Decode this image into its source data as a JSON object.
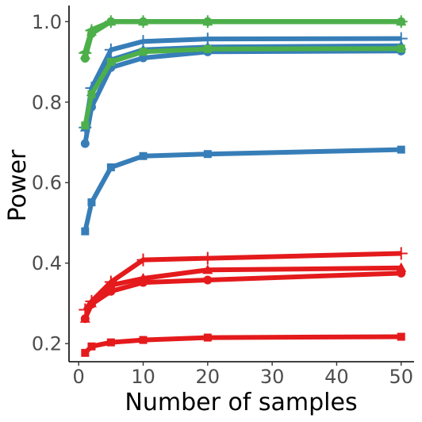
{
  "chart_data": {
    "type": "line",
    "title": "",
    "xlabel": "Number of samples",
    "ylabel": "Power",
    "xlim": [
      -1.5,
      52
    ],
    "ylim": [
      0.155,
      1.04
    ],
    "x_ticks": [
      0,
      10,
      20,
      30,
      40,
      50
    ],
    "x_tick_labels": [
      "0",
      "10",
      "20",
      "30",
      "40",
      "50"
    ],
    "y_ticks": [
      0.2,
      0.4,
      0.6,
      0.8,
      1.0
    ],
    "y_tick_labels": [
      "0.2",
      "0.4",
      "0.6",
      "0.8",
      "1.0"
    ],
    "grid": false,
    "legend": "none",
    "x": [
      1,
      2,
      5,
      10,
      20,
      50
    ],
    "series": [
      {
        "color": "#377eb8",
        "marker": "square",
        "values": [
          0.479,
          0.551,
          0.638,
          0.666,
          0.671,
          0.682
        ]
      },
      {
        "color": "#377eb8",
        "marker": "circle",
        "values": [
          0.697,
          0.788,
          0.886,
          0.91,
          0.925,
          0.927
        ]
      },
      {
        "color": "#377eb8",
        "marker": "triangle",
        "values": [
          0.737,
          0.825,
          0.905,
          0.93,
          0.937,
          0.94
        ]
      },
      {
        "color": "#377eb8",
        "marker": "plus",
        "values": [
          0.737,
          0.835,
          0.93,
          0.951,
          0.957,
          0.958
        ]
      },
      {
        "color": "#4daf4a",
        "marker": "circle",
        "values": [
          0.909,
          0.97,
          1.0,
          1.0,
          1.0,
          1.0
        ]
      },
      {
        "color": "#4daf4a",
        "marker": "triangle",
        "values": [
          0.917,
          0.975,
          1.0,
          1.0,
          1.0,
          1.0
        ]
      },
      {
        "color": "#4daf4a",
        "marker": "plus",
        "values": [
          0.922,
          0.978,
          1.0,
          1.0,
          1.0,
          1.0
        ]
      },
      {
        "color": "#4daf4a",
        "marker": "star",
        "values": [
          0.925,
          0.98,
          1.0,
          1.0,
          1.0,
          1.0
        ]
      },
      {
        "color": "#4daf4a",
        "marker": "square",
        "values": [
          0.742,
          0.82,
          0.9,
          0.925,
          0.932,
          0.933
        ]
      },
      {
        "color": "#e41a1c",
        "marker": "square",
        "values": [
          0.177,
          0.193,
          0.203,
          0.209,
          0.215,
          0.217
        ]
      },
      {
        "color": "#e41a1c",
        "marker": "circle",
        "values": [
          0.262,
          0.298,
          0.33,
          0.352,
          0.358,
          0.375
        ]
      },
      {
        "color": "#e41a1c",
        "marker": "triangle",
        "values": [
          0.262,
          0.3,
          0.345,
          0.362,
          0.383,
          0.388
        ]
      },
      {
        "color": "#e41a1c",
        "marker": "plus",
        "values": [
          0.284,
          0.305,
          0.353,
          0.408,
          0.412,
          0.424
        ]
      }
    ]
  }
}
